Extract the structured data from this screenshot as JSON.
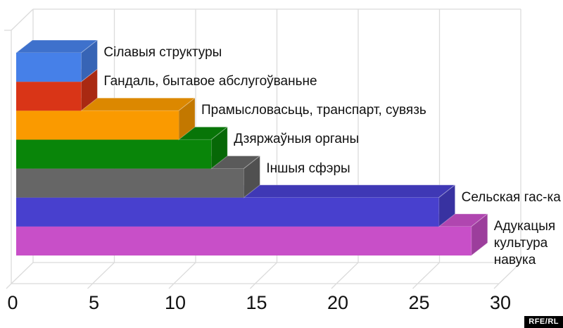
{
  "chart_data": {
    "type": "bar",
    "orientation": "horizontal",
    "style": "3d",
    "title": "",
    "xlabel": "",
    "ylabel": "",
    "xlim": [
      0,
      30
    ],
    "grid": true,
    "legend": false,
    "categories": [
      "Сілавыя структуры",
      "Гандаль, бытавое абслугоўваньне",
      "Прамысловасьць, транспарт, сувязь",
      "Дзяржаўныя органы",
      "Іншыя сфэры",
      "Сельская гас-ка",
      "Адукацыя\nкультура\nнавука"
    ],
    "values": [
      4,
      4,
      10,
      12,
      14,
      26,
      28
    ],
    "bar_colors": [
      "#4680E8",
      "#D93517",
      "#FA9A00",
      "#098509",
      "#666666",
      "#4840CE",
      "#C84FC8"
    ],
    "x_ticks": [
      0,
      5,
      10,
      15,
      20,
      25,
      30
    ]
  },
  "watermark": {
    "text": "RFE/RL"
  },
  "colors": {
    "background": "#ffffff",
    "grid": "#dbdbdb",
    "text": "#111111"
  }
}
